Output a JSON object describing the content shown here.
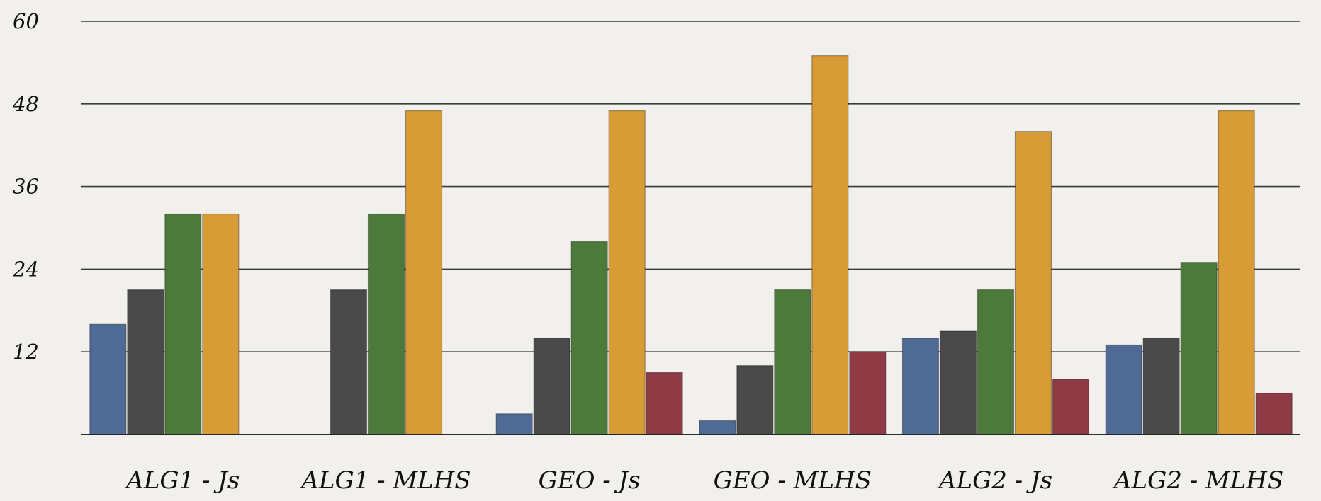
{
  "chart_data": {
    "type": "bar",
    "categories": [
      "ALG1 - Js",
      "ALG1 - MLHS",
      "GEO - Js",
      "GEO - MLHS",
      "ALG2 - Js",
      "ALG2 - MLHS"
    ],
    "series": [
      {
        "color": "#4f6b95",
        "values": [
          16,
          0,
          3,
          2,
          14,
          13
        ]
      },
      {
        "color": "#4a4a4a",
        "values": [
          21,
          21,
          14,
          10,
          15,
          14
        ]
      },
      {
        "color": "#4d7a3a",
        "values": [
          32,
          32,
          28,
          21,
          21,
          25
        ]
      },
      {
        "color": "#d89c36",
        "values": [
          32,
          47,
          47,
          55,
          44,
          47
        ]
      },
      {
        "color": "#8e3b45",
        "values": [
          0,
          0,
          9,
          12,
          8,
          6
        ]
      }
    ],
    "ylim": [
      0,
      60
    ],
    "yticks": [
      12,
      24,
      36,
      48,
      60
    ],
    "grid": true,
    "legend": "none"
  }
}
